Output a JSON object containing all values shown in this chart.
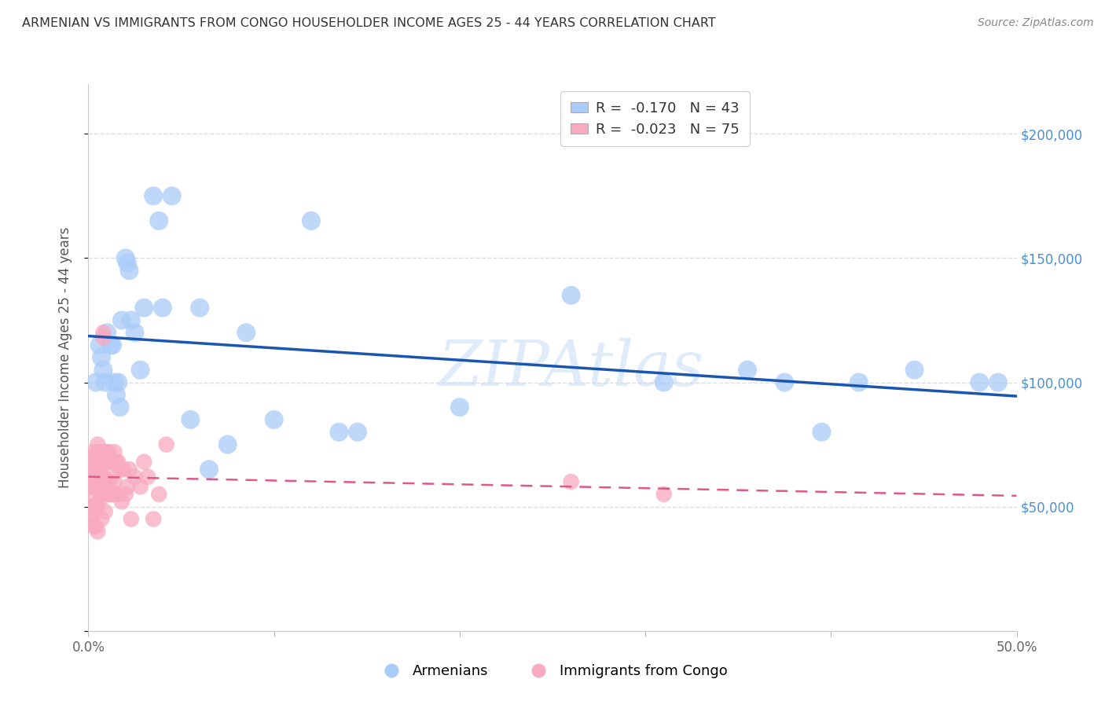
{
  "title": "ARMENIAN VS IMMIGRANTS FROM CONGO HOUSEHOLDER INCOME AGES 25 - 44 YEARS CORRELATION CHART",
  "source": "Source: ZipAtlas.com",
  "ylabel": "Householder Income Ages 25 - 44 years",
  "xlim": [
    0.0,
    0.5
  ],
  "ylim": [
    0,
    220000
  ],
  "yticks": [
    0,
    50000,
    100000,
    150000,
    200000
  ],
  "ytick_labels": [
    "",
    "$50,000",
    "$100,000",
    "$150,000",
    "$200,000"
  ],
  "xticks": [
    0.0,
    0.1,
    0.2,
    0.3,
    0.4,
    0.5
  ],
  "xtick_labels": [
    "0.0%",
    "",
    "",
    "",
    "",
    "50.0%"
  ],
  "watermark": "ZIPAtlas",
  "legend_armenian": "R =  -0.170   N = 43",
  "legend_congo": "R =  -0.023   N = 75",
  "legend_label_armenian": "Armenians",
  "legend_label_congo": "Immigrants from Congo",
  "armenian_color": "#aaccf8",
  "armenian_line_color": "#1a55b0",
  "congo_color": "#f8aac0",
  "congo_line_color": "#e05888",
  "title_color": "#333333",
  "right_tick_color": "#4a90d9",
  "grid_color": "#dddddd",
  "background_color": "#ffffff",
  "armenians_x": [
    0.004,
    0.006,
    0.007,
    0.008,
    0.009,
    0.01,
    0.012,
    0.013,
    0.014,
    0.015,
    0.016,
    0.017,
    0.018,
    0.02,
    0.021,
    0.022,
    0.023,
    0.025,
    0.028,
    0.03,
    0.035,
    0.038,
    0.04,
    0.045,
    0.055,
    0.06,
    0.065,
    0.075,
    0.085,
    0.1,
    0.12,
    0.135,
    0.145,
    0.2,
    0.26,
    0.31,
    0.355,
    0.375,
    0.395,
    0.415,
    0.445,
    0.48,
    0.49
  ],
  "armenians_y": [
    100000,
    115000,
    110000,
    105000,
    100000,
    120000,
    115000,
    115000,
    100000,
    95000,
    100000,
    90000,
    125000,
    150000,
    148000,
    145000,
    125000,
    120000,
    105000,
    130000,
    175000,
    165000,
    130000,
    175000,
    85000,
    130000,
    65000,
    75000,
    120000,
    85000,
    165000,
    80000,
    80000,
    90000,
    135000,
    100000,
    105000,
    100000,
    80000,
    100000,
    105000,
    100000,
    100000
  ],
  "congo_x": [
    0.001,
    0.001,
    0.001,
    0.001,
    0.001,
    0.002,
    0.002,
    0.002,
    0.002,
    0.002,
    0.003,
    0.003,
    0.003,
    0.003,
    0.003,
    0.003,
    0.004,
    0.004,
    0.004,
    0.004,
    0.004,
    0.005,
    0.005,
    0.005,
    0.005,
    0.005,
    0.005,
    0.006,
    0.006,
    0.006,
    0.006,
    0.007,
    0.007,
    0.007,
    0.007,
    0.007,
    0.008,
    0.008,
    0.008,
    0.008,
    0.009,
    0.009,
    0.009,
    0.01,
    0.01,
    0.01,
    0.011,
    0.011,
    0.012,
    0.012,
    0.013,
    0.013,
    0.014,
    0.014,
    0.015,
    0.015,
    0.016,
    0.016,
    0.017,
    0.018,
    0.018,
    0.019,
    0.02,
    0.021,
    0.022,
    0.023,
    0.025,
    0.028,
    0.03,
    0.032,
    0.035,
    0.038,
    0.042,
    0.26,
    0.31
  ],
  "congo_y": [
    68000,
    62000,
    58000,
    50000,
    45000,
    70000,
    65000,
    58000,
    52000,
    45000,
    72000,
    68000,
    62000,
    58000,
    50000,
    42000,
    70000,
    65000,
    58000,
    50000,
    42000,
    75000,
    70000,
    65000,
    58000,
    50000,
    40000,
    72000,
    68000,
    60000,
    52000,
    72000,
    68000,
    62000,
    55000,
    45000,
    120000,
    118000,
    72000,
    62000,
    72000,
    60000,
    48000,
    72000,
    65000,
    55000,
    72000,
    60000,
    68000,
    55000,
    68000,
    55000,
    72000,
    60000,
    68000,
    55000,
    68000,
    55000,
    65000,
    65000,
    52000,
    65000,
    55000,
    58000,
    65000,
    45000,
    62000,
    58000,
    68000,
    62000,
    45000,
    55000,
    75000,
    60000,
    55000
  ]
}
